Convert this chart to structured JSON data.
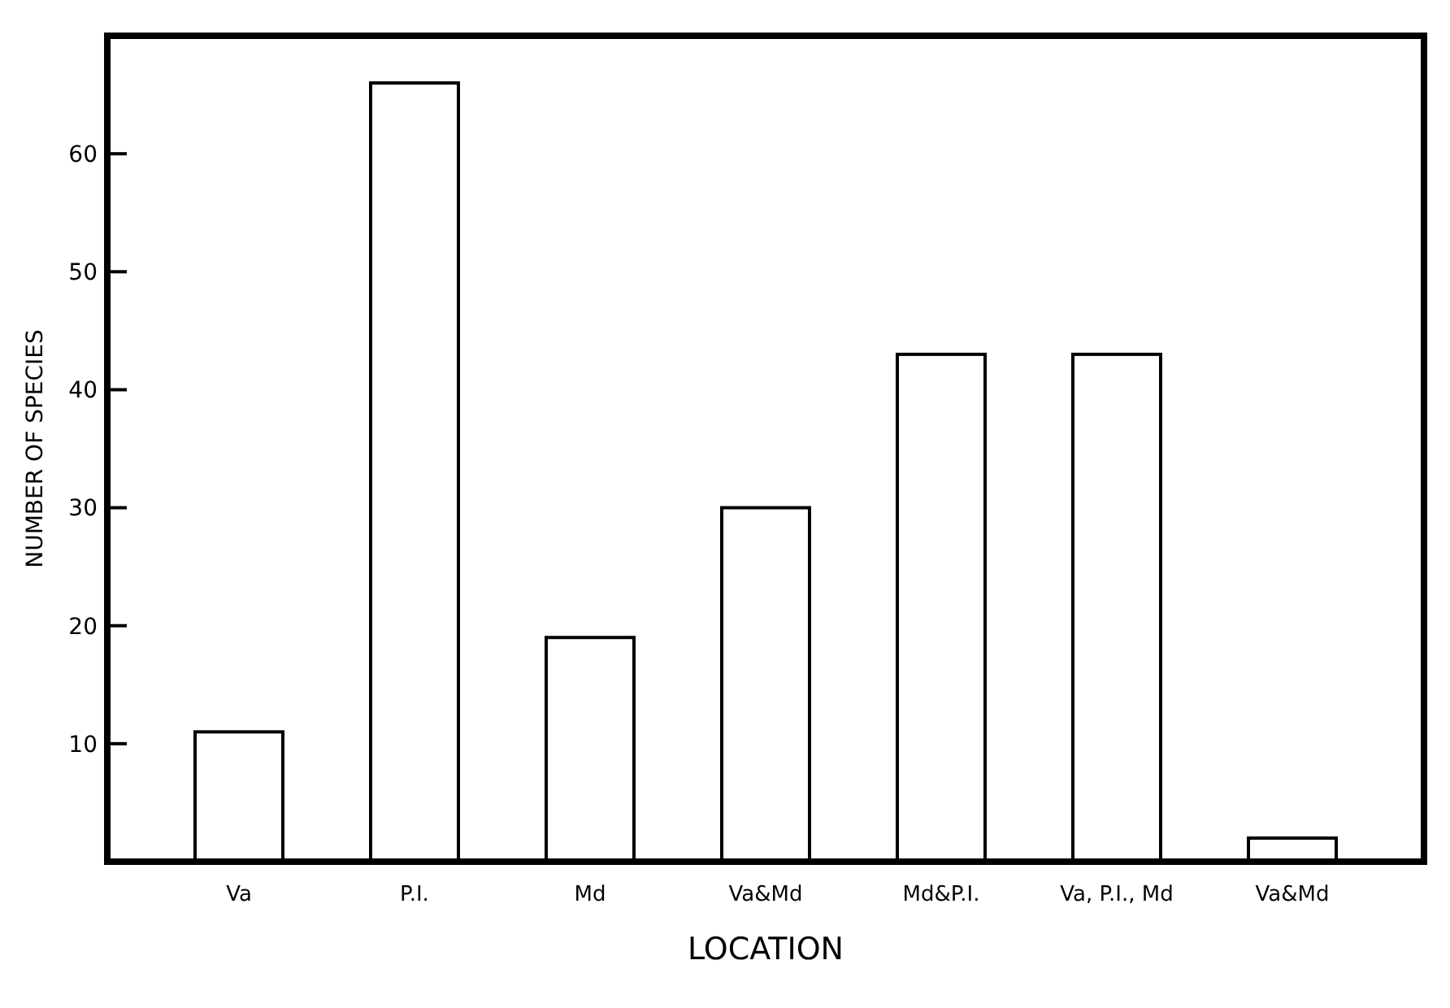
{
  "chart_data": {
    "type": "bar",
    "xlabel": "LOCATION",
    "ylabel": "NUMBER OF SPECIES",
    "categories": [
      "Va",
      "P.I.",
      "Md",
      "Va&Md",
      "Md&P.I.",
      "Va, P.I., Md",
      "Va&Md"
    ],
    "values": [
      11,
      66,
      19,
      30,
      43,
      43,
      2
    ],
    "color": "#ffffff",
    "ylim": [
      0,
      70
    ],
    "yticks": [
      10,
      20,
      30,
      40,
      50,
      60
    ],
    "grid": false
  }
}
